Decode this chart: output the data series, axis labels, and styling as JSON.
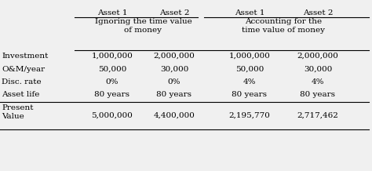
{
  "col_headers_row1": [
    "Asset 1",
    "Asset 2",
    "Asset 1",
    "Asset 2"
  ],
  "group_label_left": "Ignoring the time value\nof money",
  "group_label_right": "Accounting for the\ntime value of money",
  "row_labels": [
    "Investment",
    "O&M/year",
    "Disc. rate",
    "Asset life"
  ],
  "pv_label": "Present\nValue",
  "data": [
    [
      "1,000,000",
      "2,000,000",
      "1,000,000",
      "2,000,000"
    ],
    [
      "50,000",
      "30,000",
      "50,000",
      "30,000"
    ],
    [
      "0%",
      "0%",
      "4%",
      "4%"
    ],
    [
      "80 years",
      "80 years",
      "80 years",
      "80 years"
    ]
  ],
  "pv_data": [
    "5,000,000",
    "4,400,000",
    "2,195,770",
    "2,717,462"
  ],
  "bg_color": "#f0f0f0",
  "font_size": 7.5
}
